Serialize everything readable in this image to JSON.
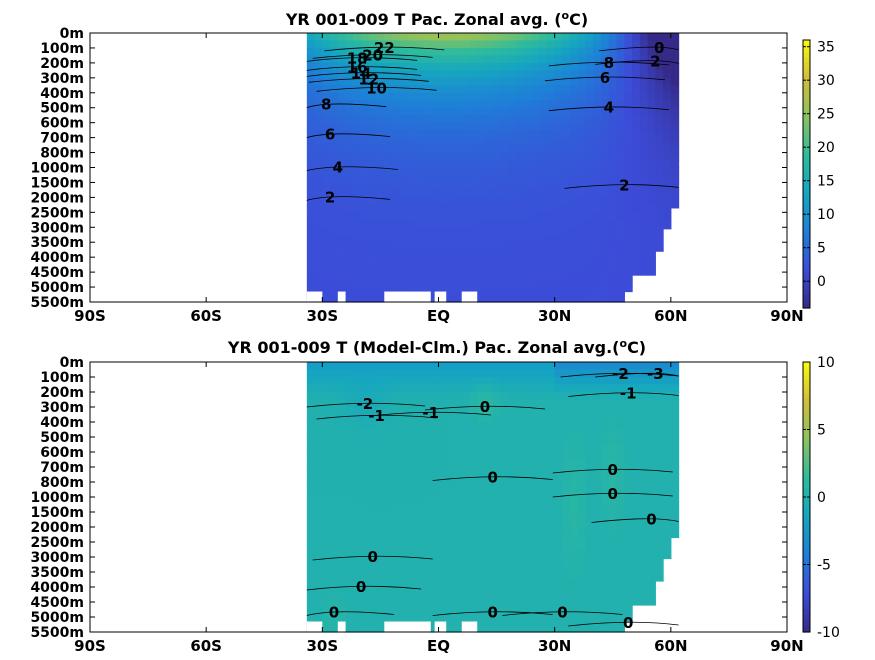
{
  "chart_data": [
    {
      "type": "contour",
      "title": "YR 001-009 T Pac. Zonal avg. (",
      "title_sup": "o",
      "title_end": "C)",
      "xlabel": "",
      "ylabel": "",
      "xticks": [
        "90S",
        "60S",
        "30S",
        "EQ",
        "30N",
        "60N",
        "90N"
      ],
      "xtick_values": [
        -90,
        -60,
        -30,
        0,
        30,
        60,
        90
      ],
      "yticks": [
        "0m",
        "100m",
        "200m",
        "300m",
        "400m",
        "500m",
        "600m",
        "700m",
        "800m",
        "1000m",
        "1500m",
        "2000m",
        "2500m",
        "3000m",
        "3500m",
        "4000m",
        "4500m",
        "5000m",
        "5500m"
      ],
      "colorbar_ticks": [
        "35",
        "30",
        "25",
        "20",
        "15",
        "10",
        "5",
        "0"
      ],
      "colorbar_values": [
        35,
        30,
        25,
        20,
        15,
        10,
        5,
        0
      ],
      "colorbar_range": [
        -4,
        36
      ],
      "colormap": [
        "#352a87",
        "#3c4cd8",
        "#1e7fd8",
        "#15a6c0",
        "#2fbb9c",
        "#8cc25e",
        "#d1bd3a",
        "#f9fb0e"
      ],
      "data_extent_lat": [
        -34,
        62
      ],
      "contour_labels": [
        {
          "text": "22",
          "lat": -14,
          "depth_idx": 1.0
        },
        {
          "text": "20",
          "lat": -17,
          "depth_idx": 1.5
        },
        {
          "text": "18",
          "lat": -21,
          "depth_idx": 1.7
        },
        {
          "text": "16",
          "lat": -21,
          "depth_idx": 2.3
        },
        {
          "text": "14",
          "lat": -20,
          "depth_idx": 2.7
        },
        {
          "text": "12",
          "lat": -18,
          "depth_idx": 3.1
        },
        {
          "text": "10",
          "lat": -16,
          "depth_idx": 3.7
        },
        {
          "text": "8",
          "lat": -29,
          "depth_idx": 4.8
        },
        {
          "text": "6",
          "lat": -28,
          "depth_idx": 6.8
        },
        {
          "text": "4",
          "lat": -26,
          "depth_idx": 9.0
        },
        {
          "text": "2",
          "lat": -28,
          "depth_idx": 11.0
        },
        {
          "text": "2",
          "lat": 48,
          "depth_idx": 10.2
        },
        {
          "text": "4",
          "lat": 44,
          "depth_idx": 5.0
        },
        {
          "text": "6",
          "lat": 43,
          "depth_idx": 3.0
        },
        {
          "text": "8",
          "lat": 44,
          "depth_idx": 2.0
        },
        {
          "text": "2",
          "lat": 56,
          "depth_idx": 1.9
        },
        {
          "text": "0",
          "lat": 57,
          "depth_idx": 1.0
        }
      ]
    },
    {
      "type": "contour",
      "title": "YR 001-009 T (Model-Clm.) Pac. Zonal avg.(",
      "title_sup": "o",
      "title_end": "C)",
      "xlabel": "",
      "ylabel": "",
      "xticks": [
        "90S",
        "60S",
        "30S",
        "EQ",
        "30N",
        "60N",
        "90N"
      ],
      "xtick_values": [
        -90,
        -60,
        -30,
        0,
        30,
        60,
        90
      ],
      "yticks": [
        "0m",
        "100m",
        "200m",
        "300m",
        "400m",
        "500m",
        "600m",
        "700m",
        "800m",
        "1000m",
        "1500m",
        "2000m",
        "2500m",
        "3000m",
        "3500m",
        "4000m",
        "4500m",
        "5000m",
        "5500m"
      ],
      "colorbar_ticks": [
        "10",
        "5",
        "0",
        "-5",
        "-10"
      ],
      "colorbar_values": [
        10,
        5,
        0,
        -5,
        -10
      ],
      "colorbar_range": [
        -10,
        10
      ],
      "colormap": [
        "#352a87",
        "#3c4cd8",
        "#1e7fd8",
        "#15a6c0",
        "#2fbb9c",
        "#8cc25e",
        "#d1bd3a",
        "#f9fb0e"
      ],
      "data_extent_lat": [
        -34,
        62
      ],
      "contour_labels": [
        {
          "text": "-2",
          "lat": -19,
          "depth_idx": 2.8
        },
        {
          "text": "-1",
          "lat": -16,
          "depth_idx": 3.6
        },
        {
          "text": "-1",
          "lat": -2,
          "depth_idx": 3.4
        },
        {
          "text": "0",
          "lat": 12,
          "depth_idx": 3.0
        },
        {
          "text": "0",
          "lat": 14,
          "depth_idx": 7.7
        },
        {
          "text": "-2",
          "lat": 47,
          "depth_idx": 0.8
        },
        {
          "text": "-3",
          "lat": 56,
          "depth_idx": 0.8
        },
        {
          "text": "-1",
          "lat": 49,
          "depth_idx": 2.1
        },
        {
          "text": "0",
          "lat": 45,
          "depth_idx": 7.2
        },
        {
          "text": "0",
          "lat": 45,
          "depth_idx": 8.8
        },
        {
          "text": "0",
          "lat": 55,
          "depth_idx": 10.5
        },
        {
          "text": "0",
          "lat": -17,
          "depth_idx": 13.0
        },
        {
          "text": "0",
          "lat": -20,
          "depth_idx": 15.0
        },
        {
          "text": "0",
          "lat": -27,
          "depth_idx": 16.7
        },
        {
          "text": "0",
          "lat": 14,
          "depth_idx": 16.7
        },
        {
          "text": "0",
          "lat": 32,
          "depth_idx": 16.7
        },
        {
          "text": "0",
          "lat": 49,
          "depth_idx": 17.4
        }
      ]
    }
  ]
}
